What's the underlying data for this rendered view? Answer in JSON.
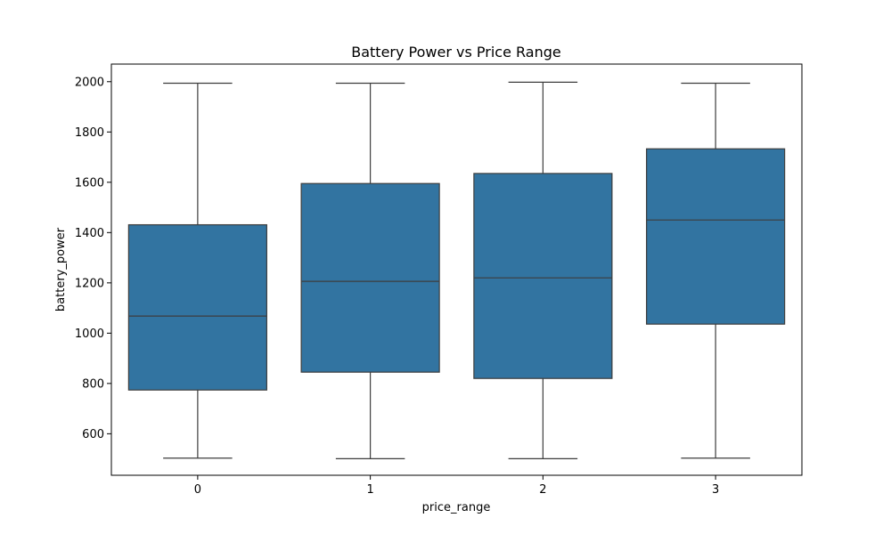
{
  "chart_data": {
    "type": "box",
    "title": "Battery Power vs Price Range",
    "xlabel": "price_range",
    "ylabel": "battery_power",
    "ylim": [
      435,
      2070
    ],
    "yticks": [
      600,
      800,
      1000,
      1200,
      1400,
      1600,
      1800,
      2000
    ],
    "grid": false,
    "box_color": "#3274a1",
    "line_color": "#3d3d3d",
    "categories": [
      "0",
      "1",
      "2",
      "3"
    ],
    "boxes": [
      {
        "category": "0",
        "min": 503,
        "q1": 774,
        "median": 1068,
        "q3": 1431,
        "max": 1994
      },
      {
        "category": "1",
        "min": 501,
        "q1": 845,
        "median": 1206,
        "q3": 1595,
        "max": 1994
      },
      {
        "category": "2",
        "min": 501,
        "q1": 820,
        "median": 1220,
        "q3": 1635,
        "max": 1998
      },
      {
        "category": "3",
        "min": 503,
        "q1": 1036,
        "median": 1450,
        "q3": 1733,
        "max": 1994
      }
    ]
  }
}
